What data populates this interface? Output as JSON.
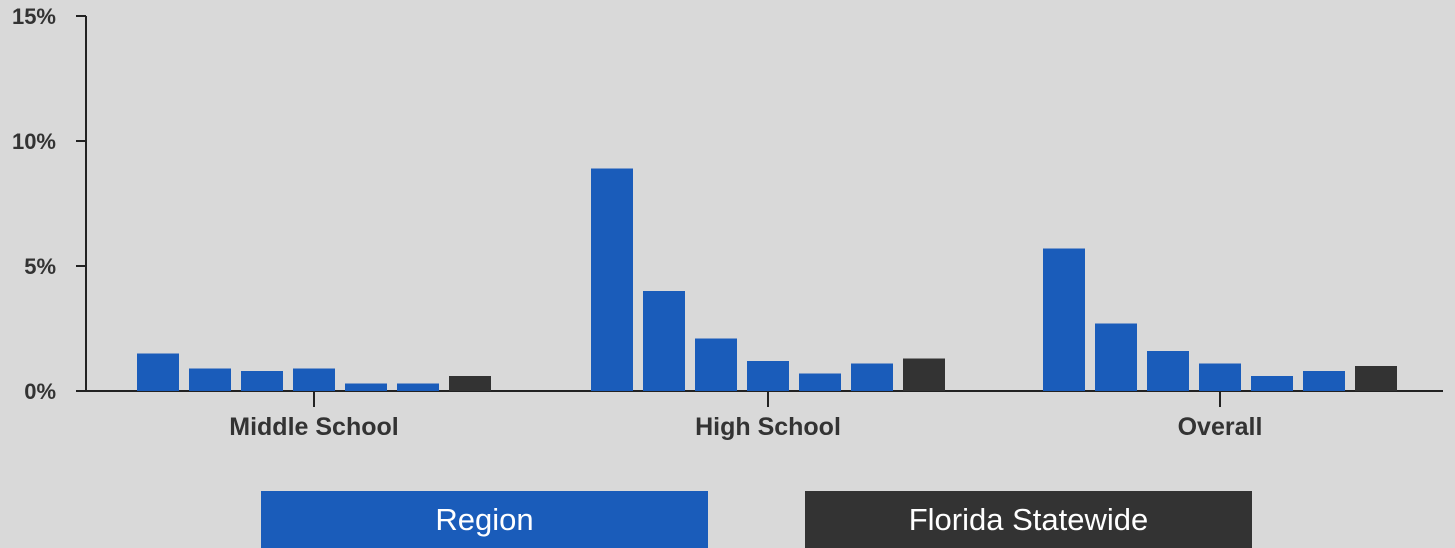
{
  "chart_data": {
    "type": "bar",
    "categories": [
      "Middle School",
      "High School",
      "Overall"
    ],
    "series": [
      {
        "values": [
          1.5,
          8.9,
          5.7
        ],
        "color": "#1a5cba"
      },
      {
        "values": [
          0.9,
          4.0,
          2.7
        ],
        "color": "#1a5cba"
      },
      {
        "values": [
          0.8,
          2.1,
          1.6
        ],
        "color": "#1a5cba"
      },
      {
        "values": [
          0.9,
          1.2,
          1.1
        ],
        "color": "#1a5cba"
      },
      {
        "values": [
          0.3,
          0.7,
          0.6
        ],
        "color": "#1a5cba"
      },
      {
        "values": [
          0.3,
          1.1,
          0.8
        ],
        "color": "#1a5cba"
      },
      {
        "values": [
          0.6,
          1.3,
          1.0
        ],
        "color": "#333333"
      }
    ],
    "y_ticks": [
      "0%",
      "5%",
      "10%",
      "15%"
    ],
    "ylim": [
      0,
      15
    ],
    "xlabel": "",
    "ylabel": "",
    "legend": {
      "position": "bottom",
      "entries": [
        {
          "label": "Region",
          "color": "#1a5cba"
        },
        {
          "label": "Florida Statewide",
          "color": "#333333"
        }
      ]
    },
    "grid": false
  }
}
